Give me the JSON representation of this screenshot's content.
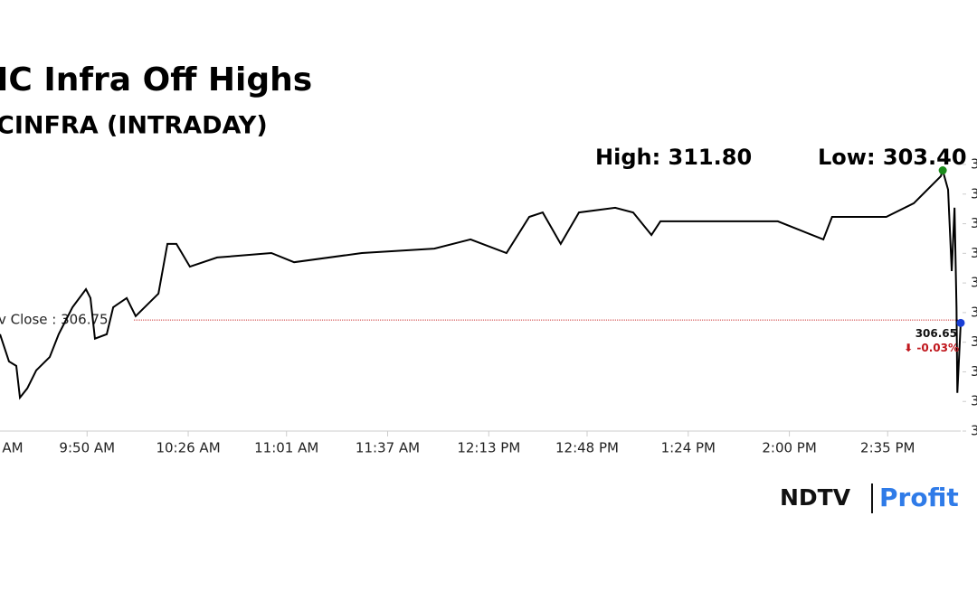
{
  "chart_data": {
    "type": "line",
    "title": "IC Infra Off Highs",
    "subtitle": "CINFRA (INTRADAY)",
    "high_label": "High: 311.80",
    "low_label": "Low: 303.40",
    "prev_close_label": "v Close : 306.75",
    "prev_close": 306.75,
    "last_label": "306.65",
    "change_label": "⬇ -0.03%",
    "brand": "NDTV",
    "brand_sub": "Profit",
    "x": [
      4,
      7.2,
      9.8,
      11.1,
      13.7,
      16.9,
      21.7,
      24.9,
      29.8,
      34.6,
      36.2,
      37.8,
      42,
      44.3,
      49.1,
      52.3,
      60.4,
      63.6,
      66.8,
      71.6,
      81.3,
      100.6,
      108.7,
      132.8,
      158.6,
      171.5,
      184.3,
      192.4,
      197.2,
      203.6,
      210.1,
      223,
      229.4,
      235.9,
      239.1,
      261.6,
      280.9,
      297.1,
      300.2,
      319.5,
      329.3,
      338.9,
      339.6,
      341.5,
      342.8,
      343.8,
      344.5,
      344.8,
      346
    ],
    "series": [
      {
        "name": "Price",
        "color": "#000000",
        "values": [
          306.27,
          305.35,
          305.2,
          304.13,
          304.44,
          305.05,
          305.5,
          306.27,
          307.18,
          307.79,
          307.49,
          306.12,
          306.27,
          307.18,
          307.49,
          306.88,
          307.64,
          309.32,
          309.32,
          308.55,
          308.86,
          309.01,
          308.7,
          309.01,
          309.16,
          309.47,
          309.01,
          310.23,
          310.38,
          309.32,
          310.38,
          310.54,
          310.38,
          309.62,
          310.08,
          310.08,
          310.08,
          309.47,
          310.23,
          310.23,
          310.69,
          311.6,
          311.8,
          311.15,
          308.4,
          310.54,
          307.18,
          304.29,
          306.65
        ]
      }
    ],
    "xlim": [
      4,
      346
    ],
    "ylim": [
      303,
      312
    ],
    "xticks": [
      {
        "value": 0,
        "label": "AM"
      },
      {
        "value": 35,
        "label": "9:50 AM"
      },
      {
        "value": 71,
        "label": "10:26 AM"
      },
      {
        "value": 106,
        "label": "11:01 AM"
      },
      {
        "value": 142,
        "label": "11:37 AM"
      },
      {
        "value": 178,
        "label": "12:13 PM"
      },
      {
        "value": 213,
        "label": "12:48 PM"
      },
      {
        "value": 249,
        "label": "1:24 PM"
      },
      {
        "value": 285,
        "label": "2:00 PM"
      },
      {
        "value": 320,
        "label": "2:35 PM"
      }
    ],
    "yticks": [
      {
        "value": 312,
        "label": "3"
      },
      {
        "value": 311,
        "label": "3"
      },
      {
        "value": 310,
        "label": "3"
      },
      {
        "value": 309,
        "label": "3"
      },
      {
        "value": 308,
        "label": "3"
      },
      {
        "value": 307,
        "label": "3"
      },
      {
        "value": 306,
        "label": "3"
      },
      {
        "value": 305,
        "label": "3"
      },
      {
        "value": 304,
        "label": "3"
      },
      {
        "value": 303,
        "label": "3"
      }
    ]
  }
}
